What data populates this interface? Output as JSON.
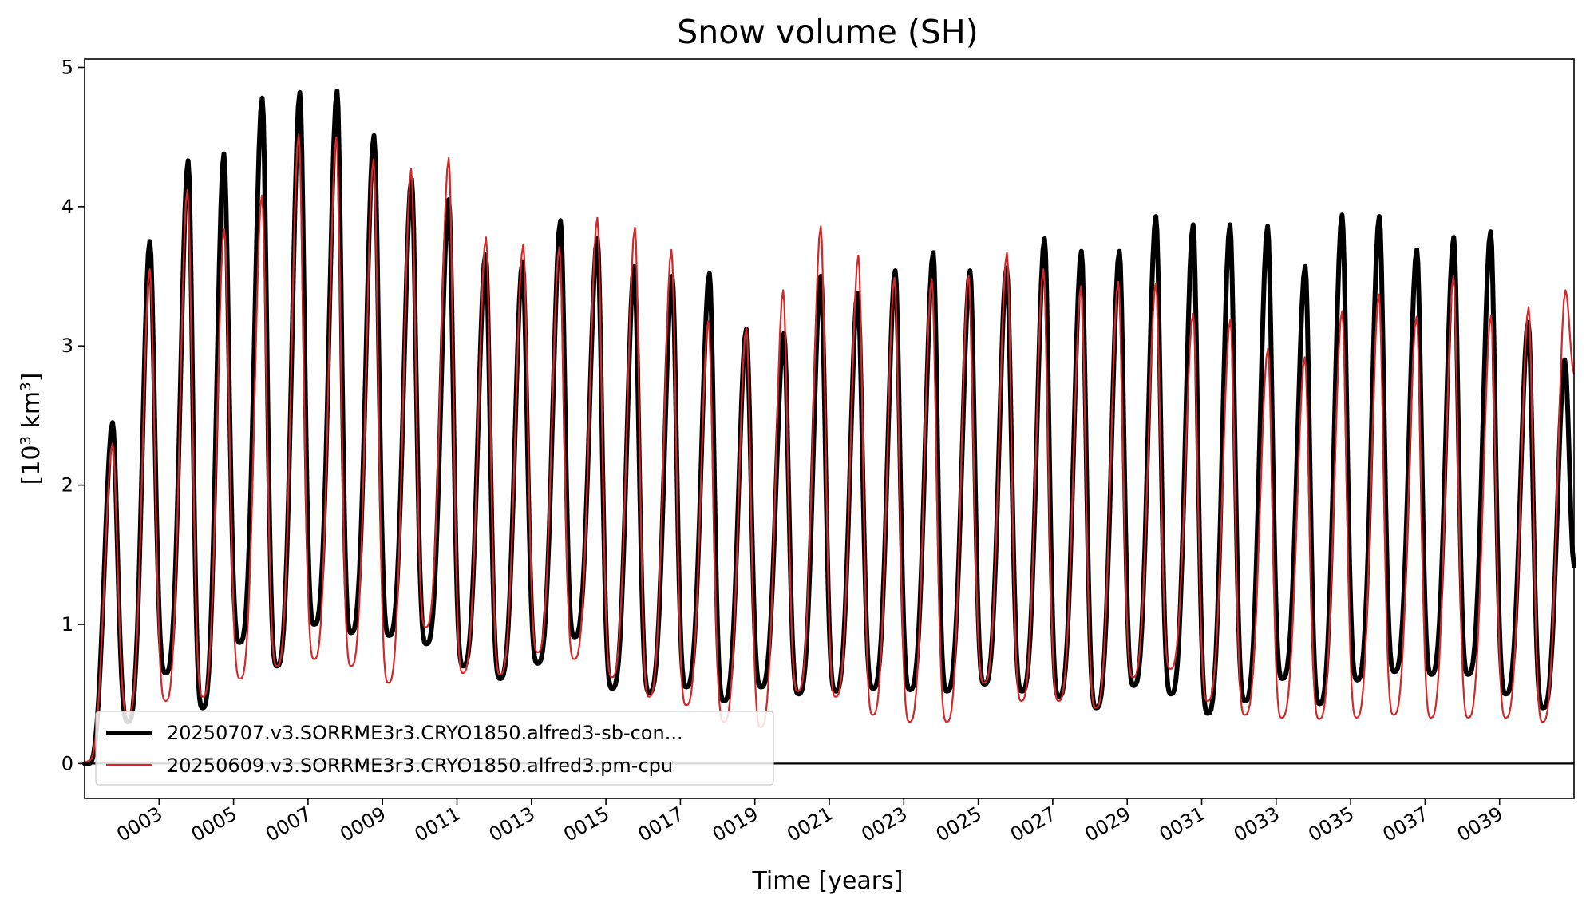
{
  "chart_data": {
    "type": "line",
    "title": "Snow volume (SH)",
    "xlabel": "Time [years]",
    "ylabel": {
      "pre": "[10",
      "sup1": "3",
      "mid": " km",
      "sup2": "3",
      "post": "]"
    },
    "xlim": [
      1.0,
      41.0
    ],
    "ylim": [
      -0.25,
      5.06
    ],
    "yticks": [
      0,
      1,
      2,
      3,
      4,
      5
    ],
    "ytick_labels": [
      "0",
      "1",
      "2",
      "3",
      "4",
      "5"
    ],
    "xticks": [
      3,
      5,
      7,
      9,
      11,
      13,
      15,
      17,
      19,
      21,
      23,
      25,
      27,
      29,
      31,
      33,
      35,
      37,
      39
    ],
    "xtick_labels": [
      "0003",
      "0005",
      "0007",
      "0009",
      "0011",
      "0013",
      "0015",
      "0017",
      "0019",
      "0021",
      "0023",
      "0025",
      "0027",
      "0029",
      "0031",
      "0033",
      "0035",
      "0037",
      "0039"
    ],
    "hline": 0,
    "grid": false,
    "legend_position": "lower-left",
    "series": [
      {
        "name": "20250707.v3.SORRME3r3.CRYO1850.alfred3-sb-con...",
        "color": "#000000",
        "style": "thick",
        "peaks": [
          [
            1.75,
            2.45
          ],
          [
            2.75,
            3.75
          ],
          [
            3.78,
            4.33
          ],
          [
            4.74,
            4.38
          ],
          [
            5.77,
            4.78
          ],
          [
            6.78,
            4.82
          ],
          [
            7.78,
            4.83
          ],
          [
            8.77,
            4.51
          ],
          [
            9.78,
            4.2
          ],
          [
            10.78,
            4.05
          ],
          [
            11.77,
            3.66
          ],
          [
            12.76,
            3.6
          ],
          [
            13.78,
            3.9
          ],
          [
            14.77,
            3.77
          ],
          [
            15.76,
            3.57
          ],
          [
            16.78,
            3.5
          ],
          [
            17.78,
            3.52
          ],
          [
            18.77,
            3.12
          ],
          [
            19.78,
            3.09
          ],
          [
            20.77,
            3.5
          ],
          [
            21.76,
            3.38
          ],
          [
            22.77,
            3.54
          ],
          [
            23.79,
            3.67
          ],
          [
            24.78,
            3.54
          ],
          [
            25.76,
            3.56
          ],
          [
            26.78,
            3.77
          ],
          [
            27.77,
            3.68
          ],
          [
            28.79,
            3.68
          ],
          [
            29.77,
            3.93
          ],
          [
            30.77,
            3.87
          ],
          [
            31.76,
            3.87
          ],
          [
            32.77,
            3.86
          ],
          [
            33.78,
            3.57
          ],
          [
            34.77,
            3.94
          ],
          [
            35.77,
            3.93
          ],
          [
            36.78,
            3.69
          ],
          [
            37.77,
            3.78
          ],
          [
            38.76,
            3.82
          ],
          [
            39.77,
            3.17
          ],
          [
            40.75,
            2.9
          ]
        ],
        "troughs": [
          [
            1.1,
            0.0
          ],
          [
            2.17,
            0.3
          ],
          [
            3.18,
            0.65
          ],
          [
            4.17,
            0.4
          ],
          [
            5.17,
            0.87
          ],
          [
            6.17,
            0.7
          ],
          [
            7.17,
            1.0
          ],
          [
            8.16,
            0.94
          ],
          [
            9.18,
            0.92
          ],
          [
            10.18,
            0.86
          ],
          [
            11.17,
            0.7
          ],
          [
            12.16,
            0.61
          ],
          [
            13.17,
            0.72
          ],
          [
            14.16,
            0.91
          ],
          [
            15.17,
            0.54
          ],
          [
            16.17,
            0.51
          ],
          [
            17.16,
            0.55
          ],
          [
            18.17,
            0.45
          ],
          [
            19.17,
            0.55
          ],
          [
            20.18,
            0.5
          ],
          [
            21.17,
            0.52
          ],
          [
            22.18,
            0.54
          ],
          [
            23.17,
            0.53
          ],
          [
            24.16,
            0.52
          ],
          [
            25.17,
            0.57
          ],
          [
            26.18,
            0.52
          ],
          [
            27.17,
            0.48
          ],
          [
            28.17,
            0.4
          ],
          [
            29.18,
            0.56
          ],
          [
            30.18,
            0.5
          ],
          [
            31.17,
            0.36
          ],
          [
            32.17,
            0.45
          ],
          [
            33.17,
            0.61
          ],
          [
            34.17,
            0.43
          ],
          [
            35.18,
            0.6
          ],
          [
            36.18,
            0.66
          ],
          [
            37.17,
            0.64
          ],
          [
            38.16,
            0.64
          ],
          [
            39.17,
            0.5
          ],
          [
            40.17,
            0.4
          ]
        ],
        "last": [
          41.0,
          1.42
        ]
      },
      {
        "name": "20250609.v3.SORRME3r3.CRYO1850.alfred3.pm-cpu",
        "color": "#d62728",
        "style": "thin",
        "peaks": [
          [
            1.75,
            2.3
          ],
          [
            2.75,
            3.55
          ],
          [
            3.76,
            4.12
          ],
          [
            4.75,
            3.84
          ],
          [
            5.76,
            4.08
          ],
          [
            6.75,
            4.52
          ],
          [
            7.76,
            4.5
          ],
          [
            8.76,
            4.34
          ],
          [
            9.77,
            4.27
          ],
          [
            10.78,
            4.35
          ],
          [
            11.78,
            3.78
          ],
          [
            12.78,
            3.73
          ],
          [
            13.75,
            3.71
          ],
          [
            14.77,
            3.92
          ],
          [
            15.78,
            3.85
          ],
          [
            16.76,
            3.69
          ],
          [
            17.75,
            3.18
          ],
          [
            18.77,
            3.13
          ],
          [
            19.76,
            3.4
          ],
          [
            20.77,
            3.86
          ],
          [
            21.78,
            3.65
          ],
          [
            22.75,
            3.49
          ],
          [
            23.75,
            3.48
          ],
          [
            24.74,
            3.5
          ],
          [
            25.77,
            3.67
          ],
          [
            26.75,
            3.55
          ],
          [
            27.76,
            3.43
          ],
          [
            28.76,
            3.46
          ],
          [
            29.77,
            3.45
          ],
          [
            30.77,
            3.23
          ],
          [
            31.77,
            3.19
          ],
          [
            32.78,
            2.98
          ],
          [
            33.77,
            2.92
          ],
          [
            34.77,
            3.25
          ],
          [
            35.76,
            3.37
          ],
          [
            36.77,
            3.21
          ],
          [
            37.76,
            3.5
          ],
          [
            38.77,
            3.22
          ],
          [
            39.78,
            3.28
          ],
          [
            40.77,
            3.4
          ]
        ],
        "troughs": [
          [
            1.1,
            0.02
          ],
          [
            2.17,
            0.35
          ],
          [
            3.18,
            0.45
          ],
          [
            4.18,
            0.48
          ],
          [
            5.18,
            0.61
          ],
          [
            6.17,
            0.7
          ],
          [
            7.17,
            0.75
          ],
          [
            8.16,
            0.7
          ],
          [
            9.16,
            0.58
          ],
          [
            10.16,
            0.98
          ],
          [
            11.16,
            0.65
          ],
          [
            12.16,
            0.64
          ],
          [
            13.17,
            0.8
          ],
          [
            14.15,
            0.75
          ],
          [
            15.16,
            0.62
          ],
          [
            16.16,
            0.48
          ],
          [
            17.16,
            0.42
          ],
          [
            18.17,
            0.3
          ],
          [
            19.16,
            0.26
          ],
          [
            20.16,
            0.52
          ],
          [
            21.17,
            0.48
          ],
          [
            22.17,
            0.35
          ],
          [
            23.16,
            0.3
          ],
          [
            24.16,
            0.3
          ],
          [
            25.16,
            0.58
          ],
          [
            26.16,
            0.45
          ],
          [
            27.16,
            0.45
          ],
          [
            28.16,
            0.4
          ],
          [
            29.16,
            0.62
          ],
          [
            30.16,
            0.68
          ],
          [
            31.16,
            0.45
          ],
          [
            32.16,
            0.35
          ],
          [
            33.15,
            0.33
          ],
          [
            34.16,
            0.32
          ],
          [
            35.16,
            0.33
          ],
          [
            36.16,
            0.35
          ],
          [
            37.16,
            0.33
          ],
          [
            38.16,
            0.33
          ],
          [
            39.17,
            0.33
          ],
          [
            40.16,
            0.3
          ]
        ],
        "last": [
          41.0,
          2.8
        ]
      }
    ]
  }
}
